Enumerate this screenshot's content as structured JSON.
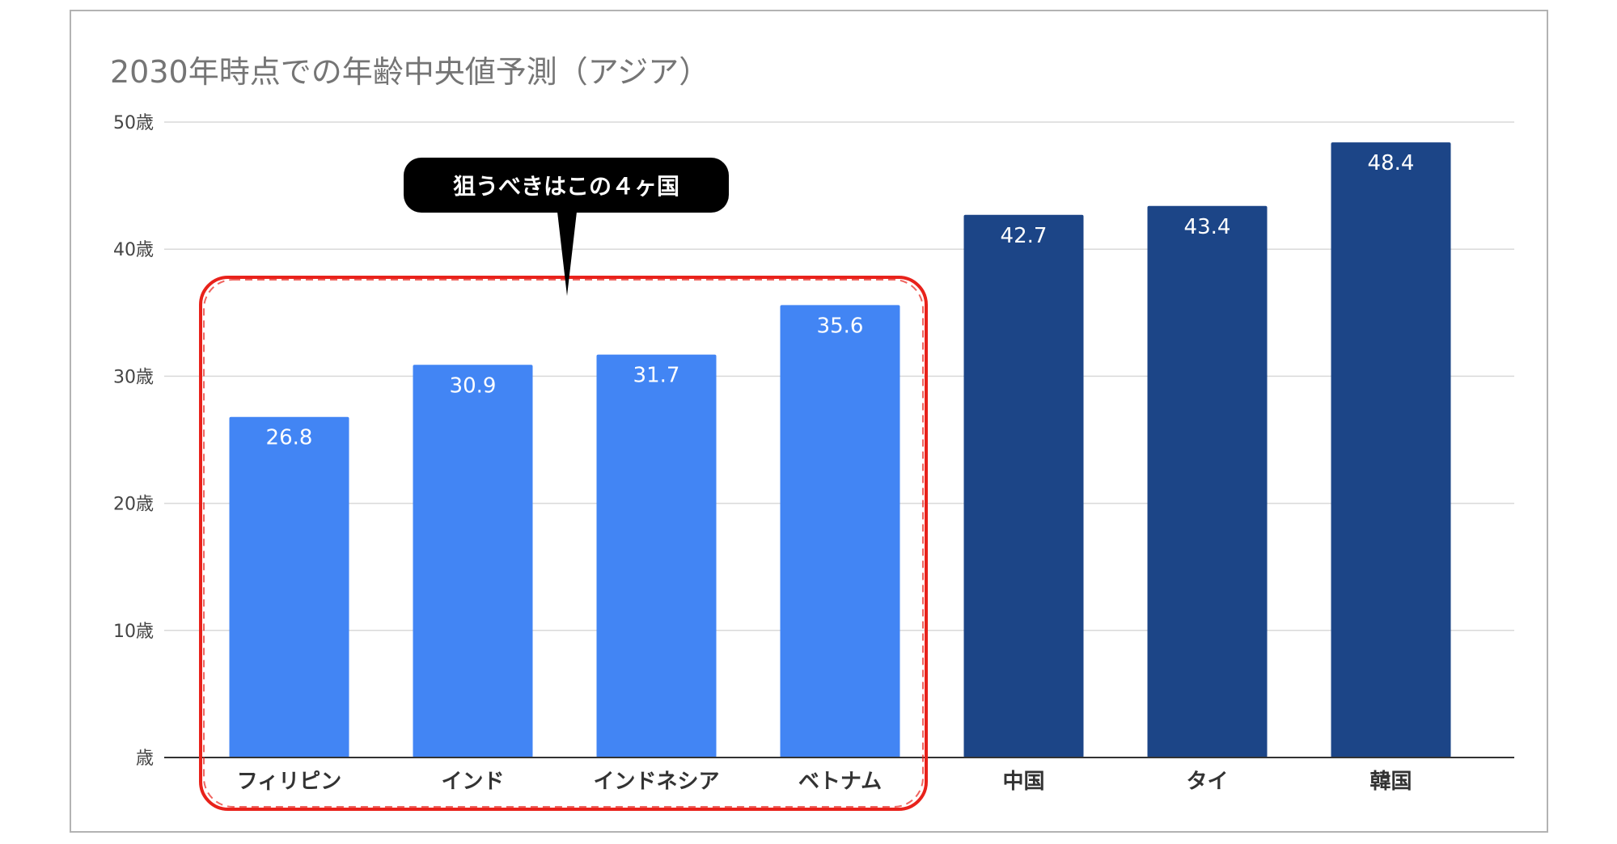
{
  "chart_data": {
    "type": "bar",
    "title": "2030年時点での年齢中央値予測（アジア）",
    "categories": [
      "フィリピン",
      "インド",
      "インドネシア",
      "ベトナム",
      "中国",
      "タイ",
      "韓国"
    ],
    "values": [
      26.8,
      30.9,
      31.7,
      35.6,
      42.7,
      43.4,
      48.4
    ],
    "y_ticks": [
      "歳",
      "10歳",
      "20歳",
      "30歳",
      "40歳",
      "50歳"
    ],
    "ylim": [
      0,
      50
    ],
    "grid": true,
    "legend": "none",
    "highlight_count": 4,
    "colors": {
      "highlight": "#4285f4",
      "other": "#1c4587",
      "grid": "#d9d9d9",
      "axis": "#333333",
      "annotation_circle": "#e8221b",
      "callout_bg": "#000000",
      "callout_text": "#ffffff"
    },
    "annotation": {
      "callout_text": "狙うべきはこの４ヶ国"
    }
  }
}
